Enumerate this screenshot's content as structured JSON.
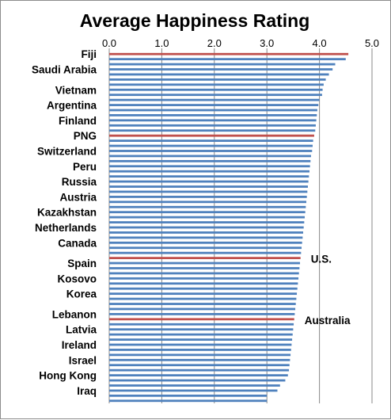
{
  "chart_data": {
    "type": "bar",
    "orientation": "horizontal",
    "title": "Average Happiness Rating",
    "xlabel": "",
    "ylabel": "",
    "xlim": [
      0,
      5
    ],
    "x_ticks": [
      "0.0",
      "1.0",
      "2.0",
      "3.0",
      "4.0",
      "5.0"
    ],
    "grid": true,
    "legend": "none",
    "colors": {
      "bar": "#4f81bd",
      "highlight": "#c0504d",
      "grid": "#888888"
    },
    "categories": [
      "Fiji",
      "",
      "",
      "Saudi Arabia",
      "",
      "",
      "",
      "Vietnam",
      "",
      "",
      "Argentina",
      "",
      "",
      "Finland",
      "",
      "",
      "PNG",
      "",
      "",
      "Switzerland",
      "",
      "",
      "Peru",
      "",
      "",
      "Russia",
      "",
      "",
      "Austria",
      "",
      "",
      "Kazakhstan",
      "",
      "",
      "Netherlands",
      "",
      "",
      "Canada",
      "",
      "",
      "",
      "Spain",
      "",
      "",
      "Kosovo",
      "",
      "",
      "Korea",
      "",
      "",
      "",
      "Lebanon",
      "",
      "",
      "Latvia",
      "",
      "",
      "Ireland",
      "",
      "",
      "Israel",
      "",
      "",
      "Hong Kong",
      "",
      "",
      "Iraq",
      "",
      ""
    ],
    "values": [
      4.55,
      4.5,
      4.3,
      4.25,
      4.18,
      4.12,
      4.08,
      4.06,
      4.05,
      4.0,
      3.98,
      3.96,
      3.95,
      3.94,
      3.93,
      3.92,
      3.9,
      3.88,
      3.87,
      3.86,
      3.84,
      3.83,
      3.82,
      3.81,
      3.8,
      3.79,
      3.78,
      3.77,
      3.76,
      3.75,
      3.74,
      3.73,
      3.72,
      3.71,
      3.7,
      3.69,
      3.68,
      3.67,
      3.66,
      3.65,
      3.64,
      3.63,
      3.62,
      3.61,
      3.6,
      3.59,
      3.58,
      3.57,
      3.56,
      3.55,
      3.54,
      3.53,
      3.52,
      3.51,
      3.5,
      3.49,
      3.48,
      3.47,
      3.46,
      3.45,
      3.44,
      3.43,
      3.42,
      3.4,
      3.35,
      3.25,
      3.2,
      3.0,
      3.0
    ],
    "highlighted": [
      0,
      16,
      40,
      52
    ],
    "annotations": [
      {
        "text": "U.S.",
        "category_index": 40
      },
      {
        "text": "Australia",
        "category_index": 52
      }
    ]
  }
}
